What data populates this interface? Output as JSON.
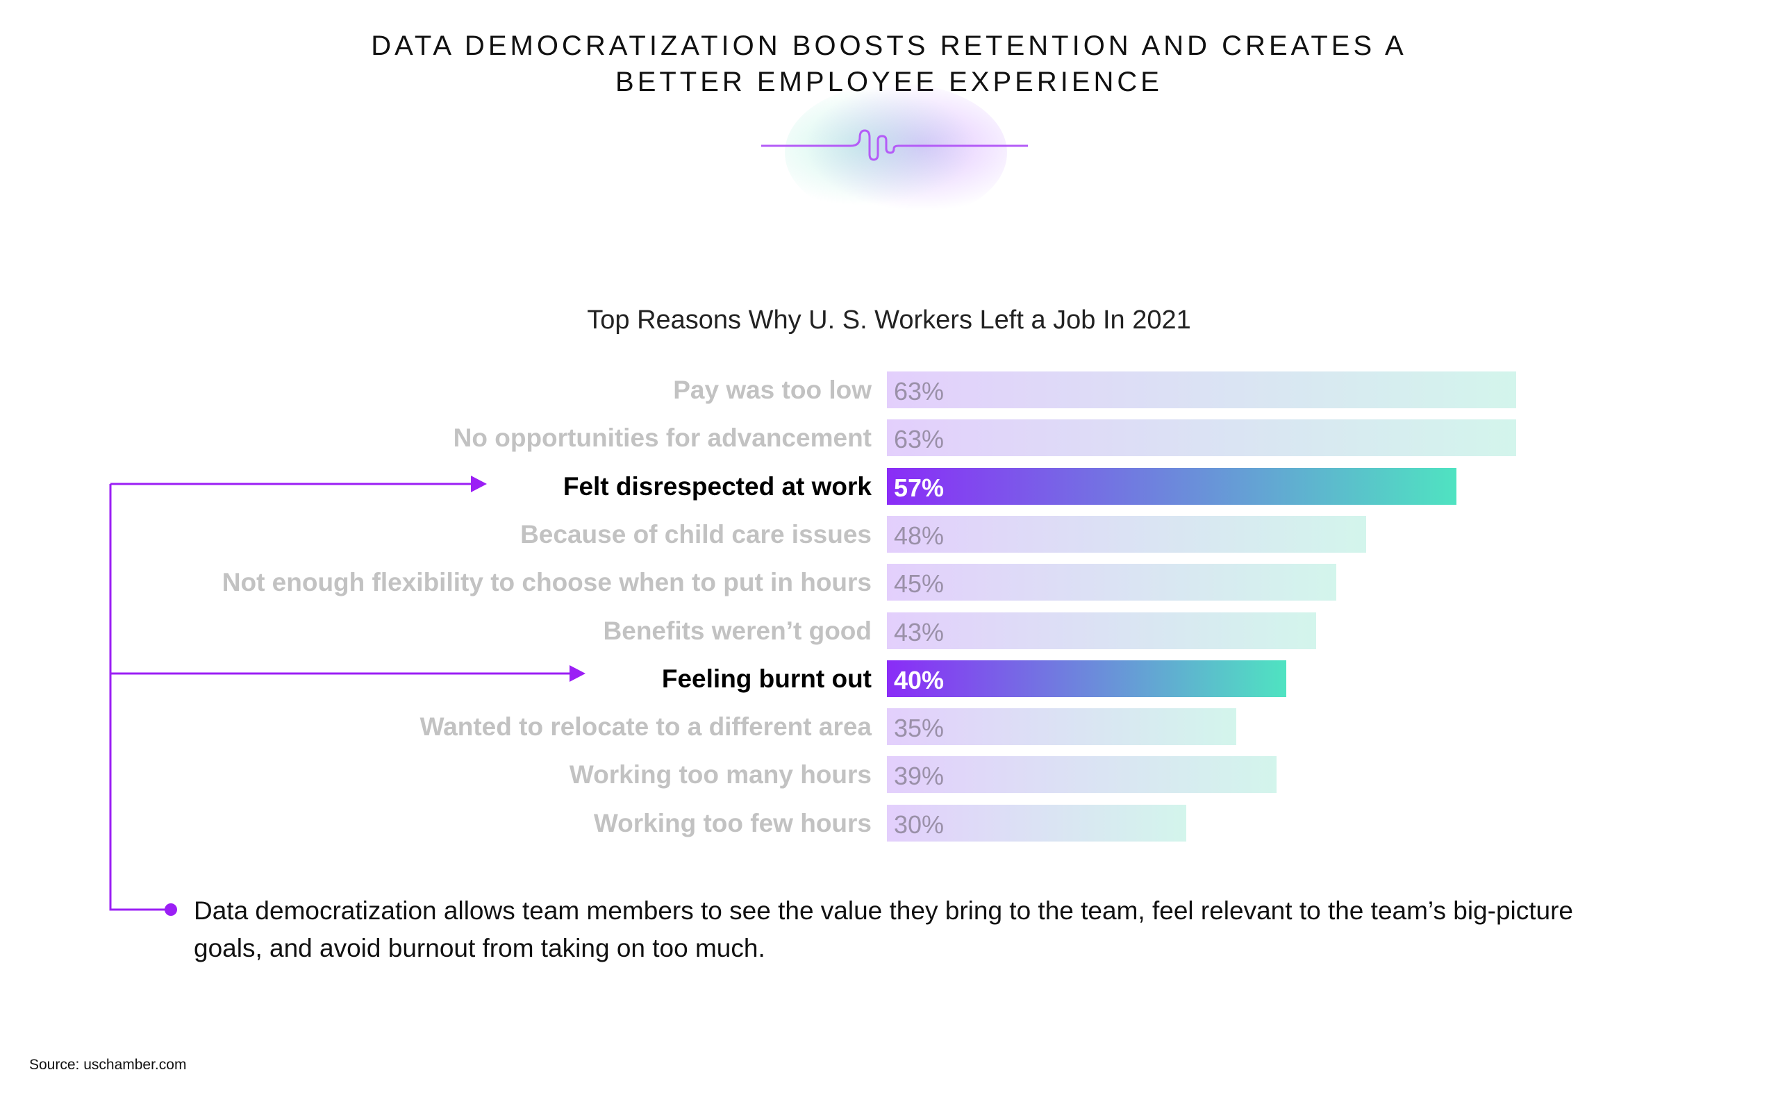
{
  "header": {
    "title_line1": "DATA DEMOCRATIZATION BOOSTS RETENTION AND CREATES A",
    "title_line2": "BETTER EMPLOYEE EXPERIENCE"
  },
  "chart_data": {
    "type": "bar",
    "orientation": "horizontal",
    "title": "Top Reasons Why U. S. Workers Left a Job In 2021",
    "categories": [
      "Pay was too low",
      "No opportunities for advancement",
      "Felt disrespected at work",
      "Because of child care issues",
      "Not enough flexibility to choose when to put in hours",
      "Benefits weren’t good",
      "Feeling burnt out",
      "Wanted to relocate to a different area",
      "Working too many hours",
      "Working too few hours"
    ],
    "values": [
      63,
      63,
      57,
      48,
      45,
      43,
      40,
      35,
      39,
      30
    ],
    "value_labels": [
      "63%",
      "63%",
      "57%",
      "48%",
      "45%",
      "43%",
      "40%",
      "35%",
      "39%",
      "30%"
    ],
    "highlighted": [
      "Felt disrespected at work",
      "Feeling burnt out"
    ],
    "unit": "%",
    "colors": {
      "bar_start": "#e3cffc",
      "bar_end": "#d3f5ec",
      "highlight_start": "#8a2cf7",
      "highlight_end": "#4fe3c1",
      "connector": "#9b1ff5"
    }
  },
  "note": "Data democratization allows team members to see the value they bring to the team, feel relevant to the team’s big-picture goals, and avoid burnout from taking on too much.",
  "source": "Source: uschamber.com"
}
